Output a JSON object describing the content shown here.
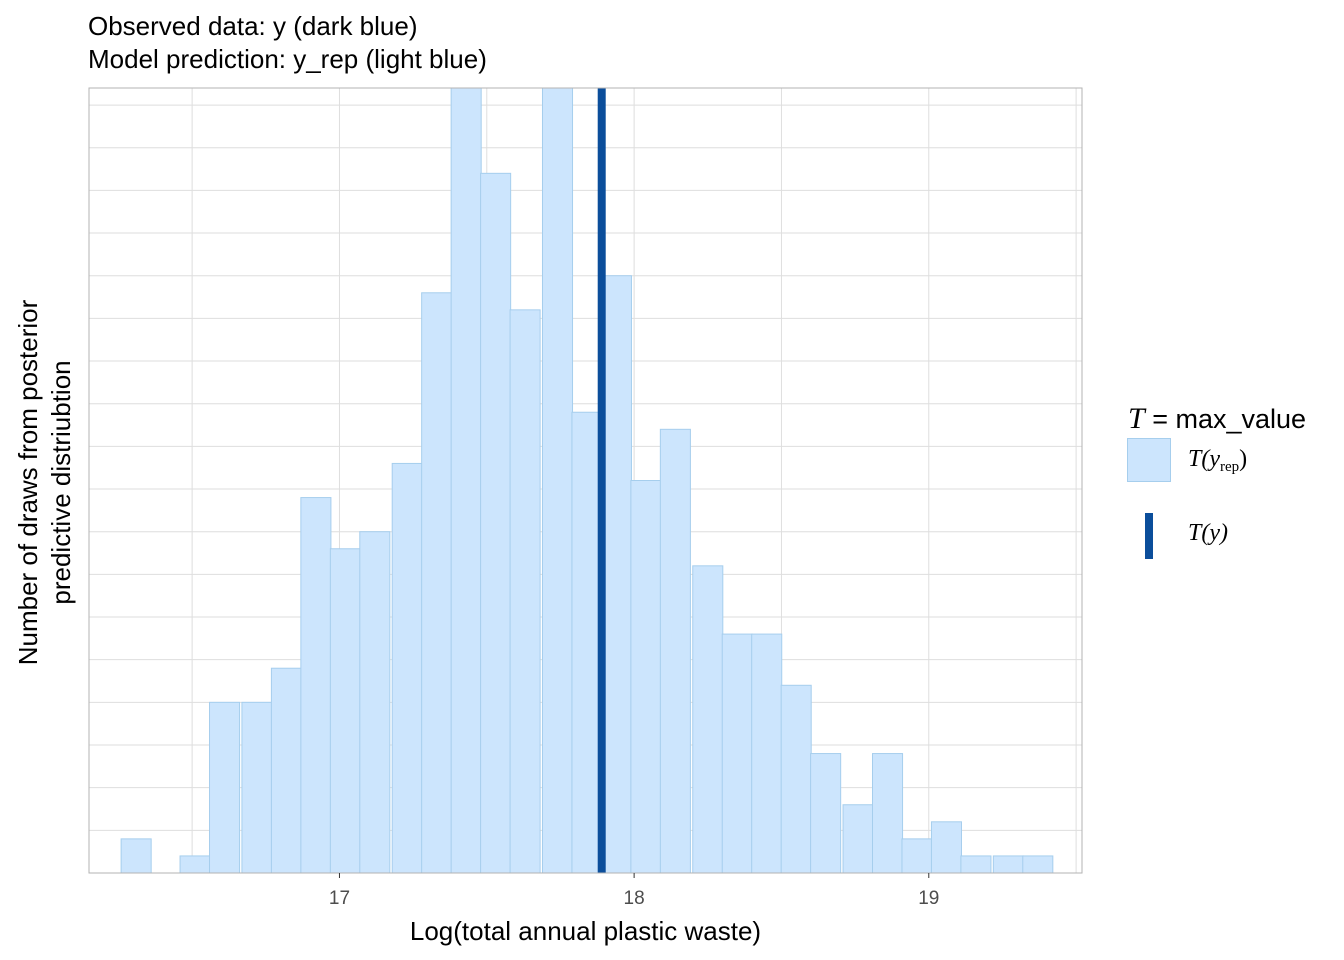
{
  "chart_data": {
    "type": "bar",
    "title": "Observed data: y (dark blue)",
    "subtitle": "Model prediction: y_rep (light blue)",
    "xlabel": "Log(total annual plastic waste)",
    "ylabel": [
      "Number of draws from posterior",
      "predictive distriubtion"
    ],
    "xlim": [
      16.15,
      19.52
    ],
    "ylim": [
      0,
      46
    ],
    "x_ticks": [
      17,
      18,
      19
    ],
    "x_tick_labels": [
      "17",
      "18",
      "19"
    ],
    "y_ticks_labeled": false,
    "grid": true,
    "bin_width": 0.102,
    "bins": [
      {
        "x": 16.31,
        "count": 2
      },
      {
        "x": 16.41,
        "count": 0
      },
      {
        "x": 16.51,
        "count": 1
      },
      {
        "x": 16.61,
        "count": 10
      },
      {
        "x": 16.72,
        "count": 10
      },
      {
        "x": 16.82,
        "count": 12
      },
      {
        "x": 16.92,
        "count": 22
      },
      {
        "x": 17.02,
        "count": 19
      },
      {
        "x": 17.12,
        "count": 20
      },
      {
        "x": 17.23,
        "count": 24
      },
      {
        "x": 17.33,
        "count": 34
      },
      {
        "x": 17.43,
        "count": 46
      },
      {
        "x": 17.53,
        "count": 41
      },
      {
        "x": 17.63,
        "count": 33
      },
      {
        "x": 17.74,
        "count": 46
      },
      {
        "x": 17.84,
        "count": 27
      },
      {
        "x": 17.94,
        "count": 35
      },
      {
        "x": 18.04,
        "count": 23
      },
      {
        "x": 18.14,
        "count": 26
      },
      {
        "x": 18.25,
        "count": 18
      },
      {
        "x": 18.35,
        "count": 14
      },
      {
        "x": 18.45,
        "count": 14
      },
      {
        "x": 18.55,
        "count": 11
      },
      {
        "x": 18.65,
        "count": 7
      },
      {
        "x": 18.76,
        "count": 4
      },
      {
        "x": 18.86,
        "count": 7
      },
      {
        "x": 18.96,
        "count": 2
      },
      {
        "x": 19.06,
        "count": 3
      },
      {
        "x": 19.16,
        "count": 1
      },
      {
        "x": 19.27,
        "count": 1
      },
      {
        "x": 19.37,
        "count": 1
      }
    ],
    "observed_value": 17.89,
    "legend": {
      "title_symbol": "T",
      "title_text": "= max_value",
      "items": [
        {
          "label_main": "T(y",
          "label_sub": "rep",
          "label_end": ")",
          "color": "#cce5fd"
        },
        {
          "label": "T(y)",
          "color": "#0b4e9b"
        }
      ],
      "position": "right"
    },
    "colors": {
      "bar_fill": "#cce5fd",
      "bar_stroke": "#a6ceed",
      "observed_line": "#0b4e9b",
      "grid": "#dedede",
      "panel_border": "#b3b3b3"
    }
  }
}
